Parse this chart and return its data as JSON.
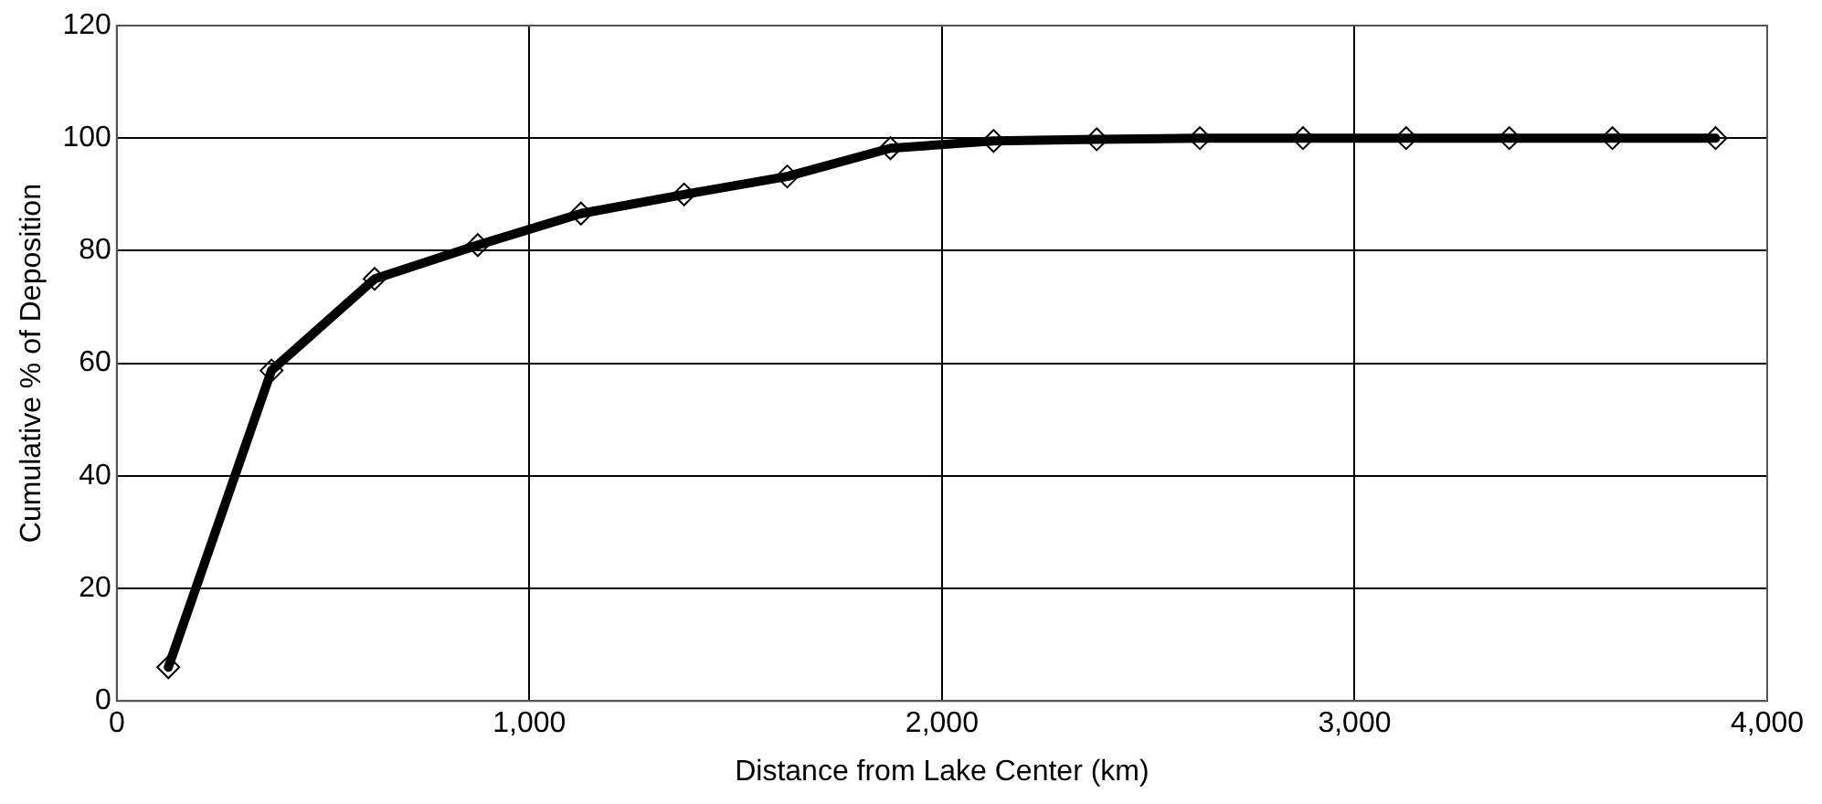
{
  "chart_data": {
    "type": "line",
    "xlabel": "Distance from Lake Center (km)",
    "ylabel": "Cumulative % of Deposition",
    "x": [
      125,
      375,
      625,
      875,
      1125,
      1375,
      1625,
      1875,
      2125,
      2375,
      2625,
      2875,
      3125,
      3375,
      3625,
      3875
    ],
    "series": [
      {
        "color": "#000000",
        "values": [
          6,
          58.7,
          75,
          81,
          86.6,
          90,
          93.2,
          98.2,
          99.5,
          99.8,
          100,
          100,
          100,
          100,
          100,
          100
        ]
      }
    ],
    "xlim": [
      0,
      4000
    ],
    "xticks": [
      0,
      {
        "value": 1000,
        "label": "1,000"
      },
      {
        "value": 2000,
        "label": "2,000"
      },
      {
        "value": 3000,
        "label": "3,000"
      },
      {
        "value": 4000,
        "label": "4,000"
      }
    ],
    "ylim": [
      0,
      120
    ],
    "yticks": [
      0,
      20,
      40,
      60,
      80,
      100,
      120
    ],
    "grid": true,
    "legend": false,
    "marker": "diamond",
    "line_style": "solid"
  }
}
